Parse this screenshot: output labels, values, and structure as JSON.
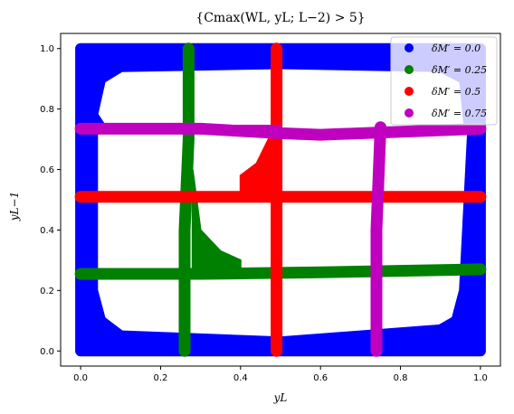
{
  "chart_data": {
    "type": "scatter",
    "title": "{Cmax(WL, yL; L−2) > 5}",
    "xlabel": "yL",
    "ylabel": "yL−1",
    "xlim": [
      -0.05,
      1.05
    ],
    "ylim": [
      -0.05,
      1.05
    ],
    "xticks": [
      "0.0",
      "0.2",
      "0.4",
      "0.6",
      "0.8",
      "1.0"
    ],
    "yticks": [
      "0.0",
      "0.2",
      "0.4",
      "0.6",
      "0.8",
      "1.0"
    ],
    "legend_position": "top-right",
    "grid": false,
    "series": [
      {
        "name": "δM′ = 0.0",
        "color": "#0000ff",
        "description": "boundary frame band",
        "outer_box": {
          "x": [
            0.0,
            1.0
          ],
          "y": [
            0.0,
            1.0
          ]
        },
        "inner_cutout_corners": [
          [
            0.05,
            0.74
          ],
          [
            0.03,
            0.78
          ],
          [
            0.05,
            0.9
          ],
          [
            0.1,
            0.94
          ],
          [
            0.5,
            0.95
          ],
          [
            0.9,
            0.94
          ],
          [
            0.96,
            0.9
          ],
          [
            0.97,
            0.76
          ],
          [
            0.98,
            0.72
          ],
          [
            0.96,
            0.2
          ],
          [
            0.94,
            0.1
          ],
          [
            0.9,
            0.07
          ],
          [
            0.5,
            0.03
          ],
          [
            0.1,
            0.05
          ],
          [
            0.05,
            0.1
          ],
          [
            0.03,
            0.2
          ],
          [
            0.03,
            0.74
          ]
        ]
      },
      {
        "name": "δM′ = 0.25",
        "color": "#008000",
        "vertical_band": [
          [
            0.26,
            0.0
          ],
          [
            0.26,
            0.4
          ],
          [
            0.27,
            0.7
          ],
          [
            0.27,
            1.0
          ]
        ],
        "horizontal_band": [
          [
            0.0,
            0.255
          ],
          [
            0.3,
            0.255
          ],
          [
            0.6,
            0.26
          ],
          [
            1.0,
            0.27
          ]
        ],
        "tail_region": [
          [
            0.28,
            0.6
          ],
          [
            0.3,
            0.4
          ],
          [
            0.35,
            0.33
          ],
          [
            0.4,
            0.3
          ],
          [
            0.4,
            0.26
          ],
          [
            0.28,
            0.26
          ]
        ]
      },
      {
        "name": "δM′ = 0.5",
        "color": "#ff0000",
        "vertical_band": [
          [
            0.49,
            0.0
          ],
          [
            0.49,
            1.0
          ]
        ],
        "horizontal_band": [
          [
            0.0,
            0.51
          ],
          [
            1.0,
            0.51
          ]
        ],
        "tail_region": [
          [
            0.4,
            0.52
          ],
          [
            0.4,
            0.58
          ],
          [
            0.44,
            0.62
          ],
          [
            0.47,
            0.7
          ],
          [
            0.49,
            0.74
          ],
          [
            0.49,
            0.52
          ]
        ]
      },
      {
        "name": "δM′ = 0.75",
        "color": "#bf00bf",
        "vertical_band": [
          [
            0.74,
            0.0
          ],
          [
            0.74,
            0.4
          ],
          [
            0.75,
            0.74
          ]
        ],
        "horizontal_band": [
          [
            0.0,
            0.735
          ],
          [
            0.3,
            0.735
          ],
          [
            0.5,
            0.72
          ],
          [
            0.6,
            0.715
          ],
          [
            1.0,
            0.735
          ]
        ],
        "tail_region": [
          [
            0.3,
            0.745
          ],
          [
            0.5,
            0.745
          ],
          [
            0.5,
            0.71
          ],
          [
            0.3,
            0.735
          ]
        ]
      }
    ]
  }
}
